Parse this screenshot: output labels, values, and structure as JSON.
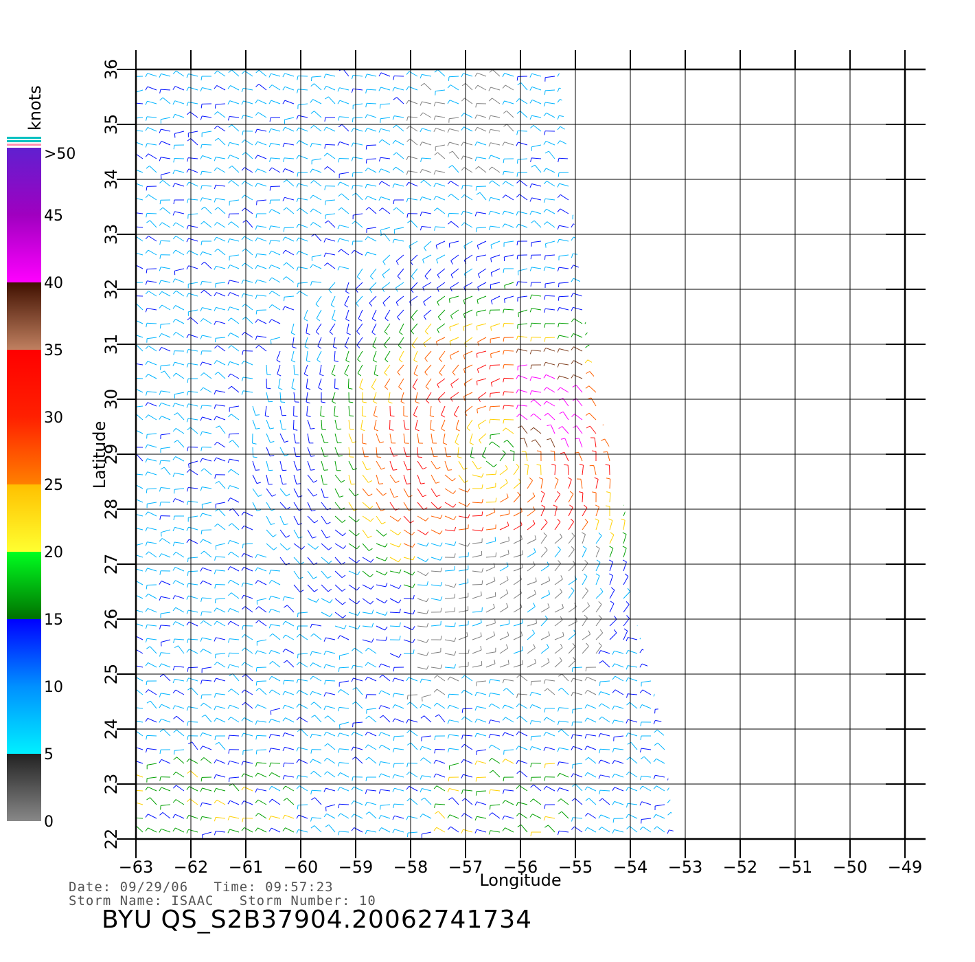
{
  "chart_data": {
    "type": "wind-vector-map",
    "xlabel": "Longitude",
    "ylabel": "Latitude",
    "xlim": [
      -63,
      -49
    ],
    "ylim": [
      22,
      36
    ],
    "x_ticks": [
      "−63",
      "−62",
      "−61",
      "−60",
      "−59",
      "−58",
      "−57",
      "−56",
      "−55",
      "−54",
      "−53",
      "−52",
      "−51",
      "−50",
      "−49"
    ],
    "y_ticks": [
      "22",
      "23",
      "24",
      "25",
      "26",
      "27",
      "28",
      "29",
      "30",
      "31",
      "32",
      "33",
      "34",
      "35",
      "36"
    ],
    "grid": true,
    "swath_edge_lon_at_lat": [
      [
        36,
        -55.3
      ],
      [
        32,
        -54.9
      ],
      [
        30,
        -54.6
      ],
      [
        28,
        -54.1
      ],
      [
        26,
        -53.9
      ],
      [
        24,
        -53.4
      ],
      [
        22,
        -53.2
      ]
    ],
    "wind_field": {
      "units": "knots",
      "vector_spacing_deg": 0.25,
      "storm_center_lon_lat": [
        -56.5,
        29.0
      ],
      "max_wind_region": {
        "lon_range": [
          -56,
          -54.8
        ],
        "lat_range": [
          29,
          31
        ],
        "speed_knots": 45
      }
    },
    "colorbar": {
      "title": "knots",
      "labels": [
        ">50",
        "45",
        "40",
        "35",
        "30",
        "25",
        "20",
        "15",
        "10",
        "5",
        "0"
      ],
      "bins": [
        {
          "min": 0,
          "max": 5,
          "color": "#808080"
        },
        {
          "min": 5,
          "max": 10,
          "color": "#00b4ff"
        },
        {
          "min": 10,
          "max": 15,
          "color": "#0010ff"
        },
        {
          "min": 15,
          "max": 20,
          "color": "#00a000"
        },
        {
          "min": 20,
          "max": 25,
          "color": "#ffd000"
        },
        {
          "min": 25,
          "max": 30,
          "color": "#ff6000"
        },
        {
          "min": 30,
          "max": 35,
          "color": "#ff1010"
        },
        {
          "min": 35,
          "max": 40,
          "color": "#804020"
        },
        {
          "min": 40,
          "max": 45,
          "color": "#ff00ff"
        },
        {
          "min": 45,
          "max": 50,
          "color": "#6010d0"
        }
      ]
    }
  },
  "info": {
    "line1": "Date: 09/29/06   Time: 09:57:23",
    "line2": "Storm Name: ISAAC   Storm Number: 10",
    "product": "BYU QS_S2B37904.20062741734"
  }
}
